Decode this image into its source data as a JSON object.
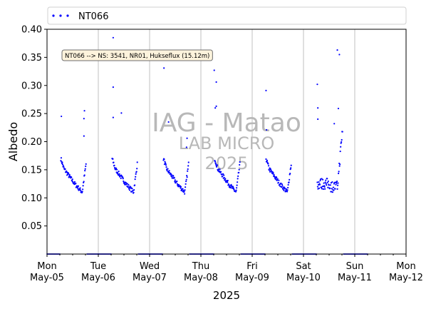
{
  "chart_data": {
    "type": "scatter",
    "title": "",
    "xlabel": "2025",
    "ylabel": "Albedo",
    "ylim": [
      0,
      0.4
    ],
    "yticks": [
      0.05,
      0.1,
      0.15,
      0.2,
      0.25,
      0.3,
      0.35,
      0.4
    ],
    "ytick_labels": [
      "0.05",
      "0.10",
      "0.15",
      "0.20",
      "0.25",
      "0.30",
      "0.35",
      "0.40"
    ],
    "xlim": [
      0,
      7
    ],
    "xticks": [
      {
        "value": 0,
        "day": "Mon",
        "date": "May-05"
      },
      {
        "value": 1,
        "day": "Tue",
        "date": "May-06"
      },
      {
        "value": 2,
        "day": "Wed",
        "date": "May-07"
      },
      {
        "value": 3,
        "day": "Thu",
        "date": "May-08"
      },
      {
        "value": 4,
        "day": "Fri",
        "date": "May-09"
      },
      {
        "value": 5,
        "day": "Sat",
        "date": "May-10"
      },
      {
        "value": 6,
        "day": "Sun",
        "date": "May-11"
      },
      {
        "value": 7,
        "day": "Mon",
        "date": "May-12"
      }
    ],
    "grid": "x-major",
    "legend": {
      "position": "top",
      "entries": [
        "NT066"
      ]
    },
    "annotation": "NT066 --> NS: 3541, NR01, Hukseflux (15.12m)",
    "watermark": {
      "line1": "IAG - Matao",
      "line2": "LAB MICRO",
      "line3": "2025"
    },
    "colors": {
      "series": "#0000ff",
      "grid": "#b0b0b0",
      "annotation_bg": "#fdf3dc",
      "annotation_border": "#6e6e6e"
    },
    "series": [
      {
        "name": "NT066",
        "marker": "dot",
        "daily_profile": {
          "day_start_fraction": 0.27,
          "day_end_fraction": 0.76,
          "morning_peak": 0.17,
          "min": 0.11,
          "evening_rise": 0.16
        },
        "outliers": [
          [
            0.28,
            0.245
          ],
          [
            0.73,
            0.255
          ],
          [
            0.72,
            0.241
          ],
          [
            0.72,
            0.21
          ],
          [
            1.29,
            0.385
          ],
          [
            1.29,
            0.297
          ],
          [
            1.29,
            0.243
          ],
          [
            1.45,
            0.251
          ],
          [
            2.28,
            0.331
          ],
          [
            2.37,
            0.235
          ],
          [
            2.73,
            0.206
          ],
          [
            2.72,
            0.19
          ],
          [
            3.26,
            0.327
          ],
          [
            3.3,
            0.306
          ],
          [
            3.28,
            0.26
          ],
          [
            3.3,
            0.263
          ],
          [
            4.27,
            0.291
          ],
          [
            4.28,
            0.221
          ],
          [
            5.27,
            0.302
          ],
          [
            5.28,
            0.26
          ],
          [
            5.28,
            0.24
          ],
          [
            5.6,
            0.232
          ],
          [
            5.66,
            0.363
          ],
          [
            5.7,
            0.355
          ],
          [
            5.68,
            0.259
          ]
        ]
      }
    ]
  }
}
